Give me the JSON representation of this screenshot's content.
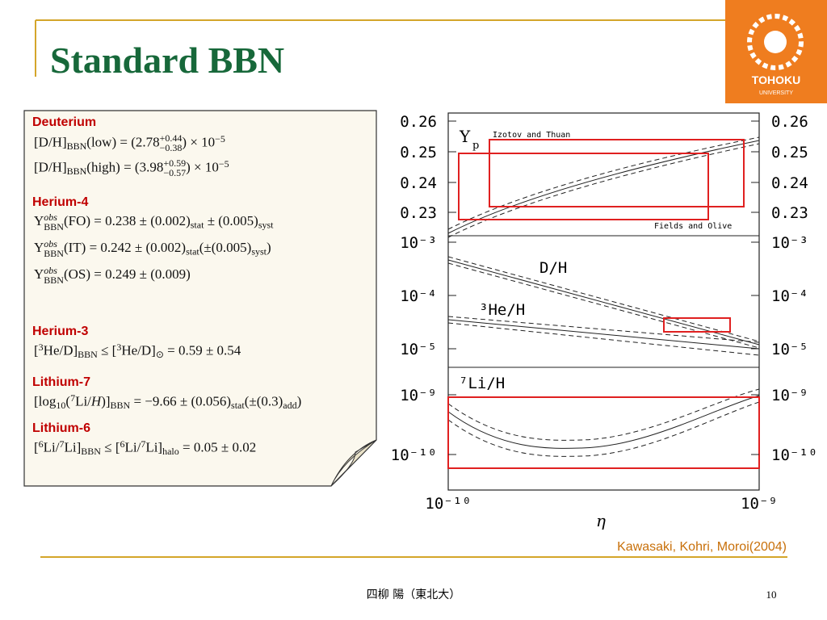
{
  "header": {
    "title": "Standard BBN",
    "logo": {
      "line1": "TOHOKU",
      "line2": "UNIVERSITY"
    }
  },
  "notes": {
    "sections": [
      {
        "heading": "Deuterium",
        "equations": [
          [
            "[D/H]",
            "BBN",
            "(low) = (2.78",
            "+0.44",
            "−0.38",
            ") × 10",
            "−5"
          ],
          [
            "[D/H]",
            "BBN",
            "(high) = (3.98",
            "+0.59",
            "−0.57",
            ") × 10",
            "−5"
          ]
        ]
      },
      {
        "heading": "Herium-4",
        "equations": [
          [
            "Y",
            "obs",
            "BBN",
            "(FO) = 0.238 ± (0.002)",
            "stat",
            " ± (0.005)",
            "syst"
          ],
          [
            "Y",
            "obs",
            "BBN",
            "(IT) = 0.242 ± (0.002)",
            "stat",
            "(±(0.005)",
            "syst",
            ")"
          ],
          [
            "Y",
            "obs",
            "BBN",
            "(OS) = 0.249 ± (0.009)"
          ]
        ]
      },
      {
        "heading": "Herium-3",
        "equations": [
          [
            "[",
            "3",
            "He/D]",
            "BBN",
            " ≤ [",
            "3",
            "He/D]",
            "⊙",
            " = 0.59 ± 0.54"
          ]
        ]
      },
      {
        "heading": "Lithium-7",
        "equations": [
          [
            "[log",
            "10",
            "(",
            "7",
            "Li/",
            "H",
            ")]",
            "BBN",
            " = −9.66 ± (0.056)",
            "stat",
            "(±(0.3)",
            "add",
            ")"
          ]
        ]
      },
      {
        "heading": "Lithium-6",
        "equations": [
          [
            "[",
            "6",
            "Li/",
            "7",
            "Li]",
            "BBN",
            " ≤ [",
            "6",
            "Li/",
            "7",
            "Li]",
            "halo",
            " = 0.05 ± 0.02"
          ]
        ]
      }
    ]
  },
  "figure": {
    "y_tick_labels": [
      "0.26",
      "0.25",
      "0.24",
      "0.23",
      "10⁻³",
      "10⁻⁴",
      "10⁻⁵",
      "10⁻⁹",
      "10⁻¹⁰"
    ],
    "x_tick_labels": [
      "10⁻¹⁰",
      "10⁻⁹"
    ],
    "x_label": "η",
    "panel_labels": {
      "yp": "Y",
      "yp_sub": "p",
      "izotov": "Izotov and Thuan",
      "fields": "Fields and Olive",
      "dh": "D/H",
      "he3": "³He/H",
      "li7": "⁷Li/H"
    },
    "credit": "Kawasaki, Kohri, Moroi(2004)"
  },
  "footer": {
    "author": "四柳 陽（東北大）",
    "page": "10"
  }
}
